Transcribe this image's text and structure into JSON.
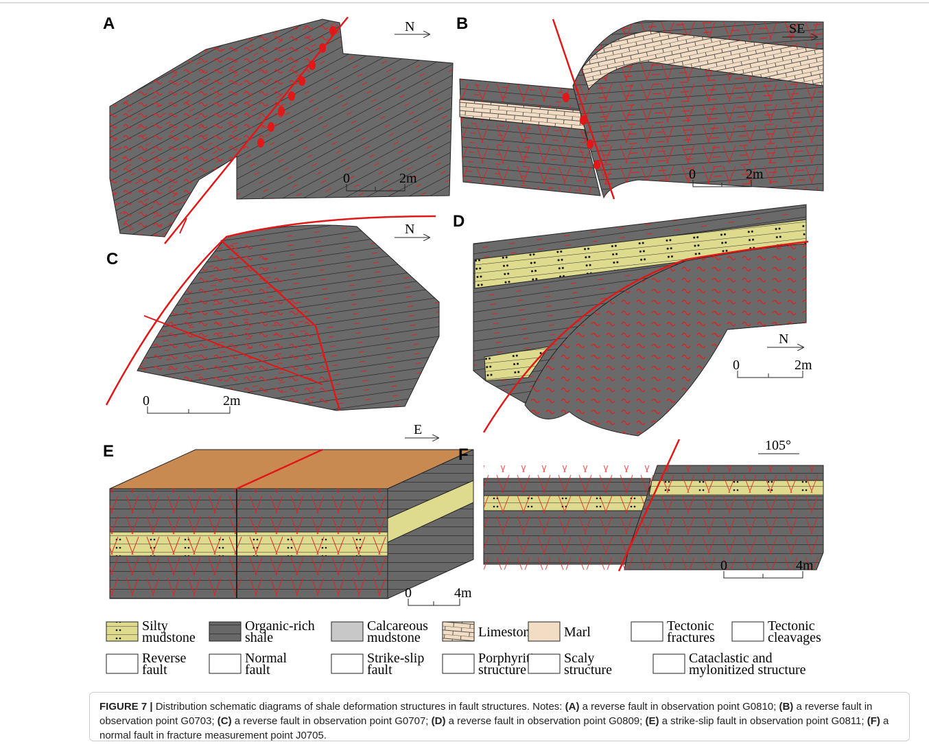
{
  "panels": [
    {
      "label": "A",
      "direction": "N",
      "scale": {
        "start": "0",
        "end": "2m"
      }
    },
    {
      "label": "B",
      "direction": "SE",
      "scale": {
        "start": "0",
        "end": "2m"
      }
    },
    {
      "label": "C",
      "direction": "N",
      "scale": {
        "start": "0",
        "end": "2m"
      }
    },
    {
      "label": "D",
      "direction": "N",
      "scale": {
        "start": "0",
        "end": "2m"
      }
    },
    {
      "label": "E",
      "direction": "E",
      "scale": {
        "start": "0",
        "end": "4m"
      }
    },
    {
      "label": "F",
      "direction": "105°",
      "scale": {
        "start": "0",
        "end": "4m"
      }
    }
  ],
  "legend": [
    {
      "lines": [
        "Silty",
        "mudstone"
      ]
    },
    {
      "lines": [
        "Organic-rich",
        "shale"
      ]
    },
    {
      "lines": [
        "Calcareous",
        "mudstone"
      ]
    },
    {
      "lines": [
        "Limestone"
      ]
    },
    {
      "lines": [
        "Marl"
      ]
    },
    {
      "lines": [
        "Tectonic",
        "fractures"
      ]
    },
    {
      "lines": [
        "Tectonic",
        "cleavages"
      ]
    },
    {
      "lines": [
        "Reverse",
        "fault"
      ]
    },
    {
      "lines": [
        "Normal",
        "fault"
      ]
    },
    {
      "lines": [
        "Strike-slip",
        "fault"
      ]
    },
    {
      "lines": [
        "Porphyritic",
        "structure"
      ]
    },
    {
      "lines": [
        "Scaly",
        "structure"
      ]
    },
    {
      "lines": [
        "Cataclastic and",
        "mylonitized structure"
      ]
    }
  ],
  "caption": {
    "figure_label": "FIGURE 7 |",
    "text": "Distribution schematic diagrams of shale deformation structures in fault structures. Notes:",
    "notes": [
      {
        "key": "(A)",
        "text": "a reverse fault in observation point G0810;"
      },
      {
        "key": "(B)",
        "text": "a reverse fault in observation point G0703;"
      },
      {
        "key": "(C)",
        "text": "a reverse fault in observation point G0707;"
      },
      {
        "key": "(D)",
        "text": "a reverse fault in observation point G0809;"
      },
      {
        "key": "(E)",
        "text": "a strike-slip fault in observation point G0811;"
      },
      {
        "key": "(F)",
        "text": "a normal fault in fracture measurement point J0705."
      }
    ]
  }
}
